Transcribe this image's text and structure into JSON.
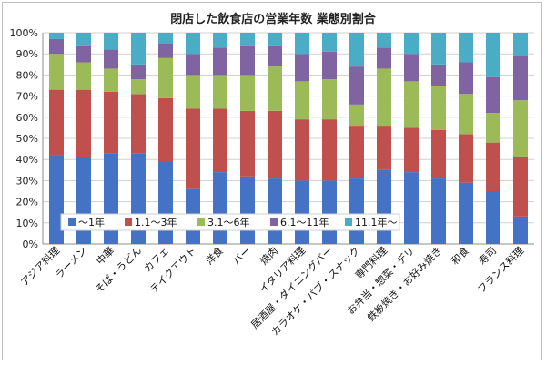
{
  "chart_data": {
    "type": "bar",
    "stacked": true,
    "percent": true,
    "title": "閉店した飲食店の営業年数 業態別割合",
    "categories": [
      "アジア料理",
      "ラーメン",
      "中華",
      "そば・うどん",
      "カフェ",
      "テイクアウト",
      "洋食",
      "バー",
      "焼肉",
      "イタリア料理",
      "居酒屋・ダイニングバー",
      "カラオケ・パブ・スナック",
      "専門料理",
      "お弁当・惣菜・デリ",
      "鉄板焼き・お好み焼き",
      "和食",
      "寿司",
      "フランス料理"
    ],
    "series": [
      {
        "name": "～1年",
        "color": "#4472C4",
        "values": [
          42,
          41,
          43,
          43,
          39,
          26,
          34,
          32,
          31,
          30,
          30,
          31,
          35,
          34,
          31,
          29,
          25,
          13
        ]
      },
      {
        "name": "1.1～3年",
        "color": "#C0504D",
        "values": [
          31,
          32,
          29,
          28,
          30,
          38,
          30,
          31,
          32,
          29,
          29,
          25,
          21,
          21,
          23,
          23,
          23,
          28
        ]
      },
      {
        "name": "3.1～6年",
        "color": "#9BBB59",
        "values": [
          17,
          13,
          11,
          7,
          19,
          16,
          16,
          17,
          21,
          18,
          19,
          10,
          27,
          22,
          21,
          19,
          14,
          27
        ]
      },
      {
        "name": "6.1～11年",
        "color": "#8064A2",
        "values": [
          7,
          8,
          9,
          7,
          7,
          10,
          13,
          14,
          10,
          13,
          13,
          18,
          10,
          13,
          10,
          15,
          17,
          21
        ]
      },
      {
        "name": "11.1年～",
        "color": "#4BACC6",
        "values": [
          3,
          6,
          8,
          15,
          5,
          10,
          7,
          6,
          6,
          10,
          9,
          16,
          7,
          10,
          15,
          14,
          21,
          11
        ]
      }
    ],
    "yticks": [
      "0%",
      "10%",
      "20%",
      "30%",
      "40%",
      "50%",
      "60%",
      "70%",
      "80%",
      "90%",
      "100%"
    ],
    "ylim": [
      0,
      100
    ],
    "grid": true,
    "legend": "bottom-left-inside"
  }
}
